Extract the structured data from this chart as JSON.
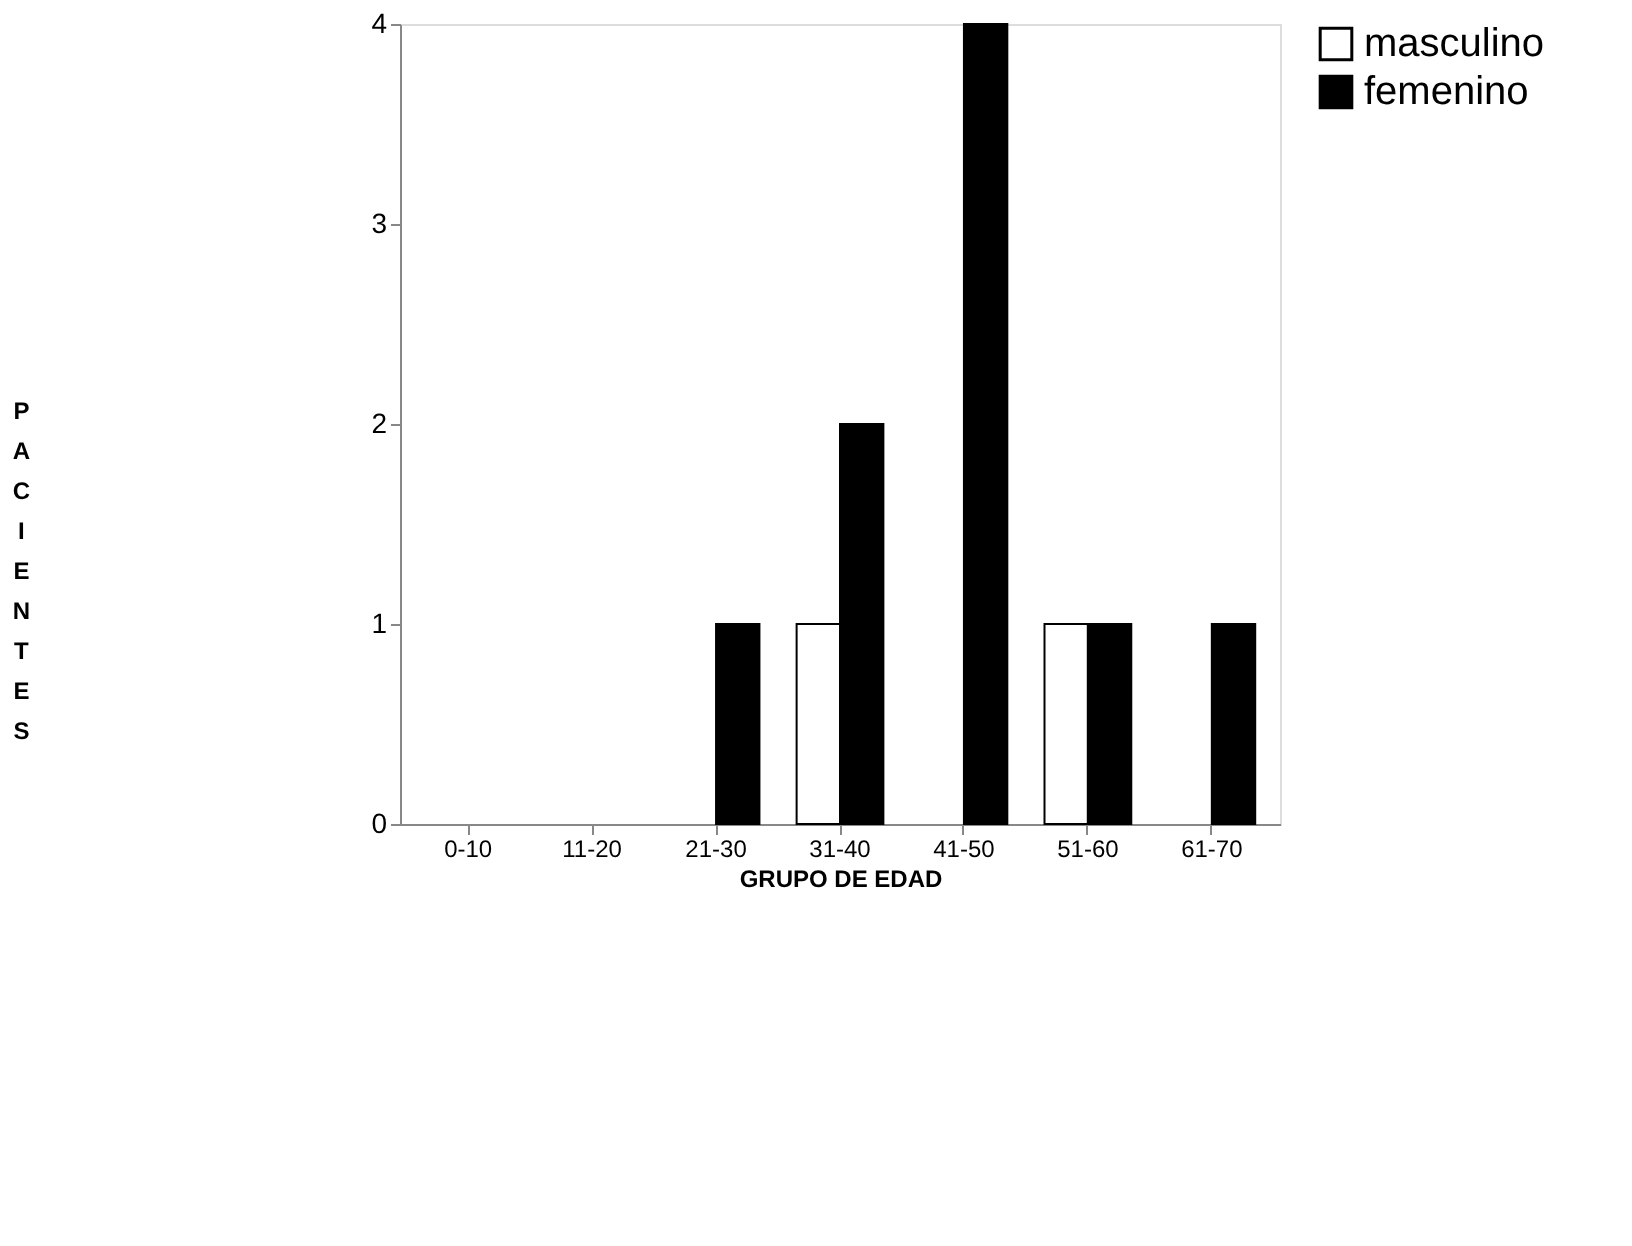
{
  "chart_data": {
    "type": "bar",
    "xlabel": "GRUPO DE EDAD",
    "ylabel": "PACIENTES",
    "categories": [
      "0-10",
      "11-20",
      "21-30",
      "31-40",
      "41-50",
      "51-60",
      "61-70"
    ],
    "series": [
      {
        "name": "masculino",
        "color": "#ffffff",
        "values": [
          0,
          0,
          0,
          1,
          0,
          1,
          0
        ]
      },
      {
        "name": "femenino",
        "color": "#000000",
        "values": [
          0,
          0,
          1,
          2,
          4,
          1,
          1
        ]
      }
    ],
    "ylim": [
      0,
      4
    ],
    "yticks": [
      0,
      1,
      2,
      3,
      4
    ],
    "grid": false,
    "legend": "right"
  }
}
